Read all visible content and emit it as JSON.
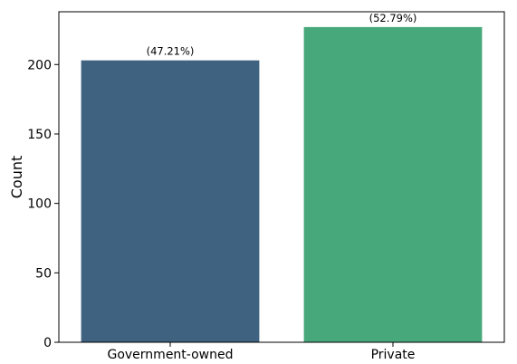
{
  "chart_data": {
    "type": "bar",
    "categories": [
      "Government-owned",
      "Private"
    ],
    "values": [
      203,
      227
    ],
    "data_labels": [
      "(47.21%)",
      "(52.79%)"
    ],
    "colors": [
      "#3e627f",
      "#47a97b"
    ],
    "xlabel": "",
    "ylabel": "Count",
    "ylim": [
      0,
      238
    ],
    "yticks": [
      0,
      50,
      100,
      150,
      200
    ],
    "grid": false,
    "legend": "none"
  }
}
